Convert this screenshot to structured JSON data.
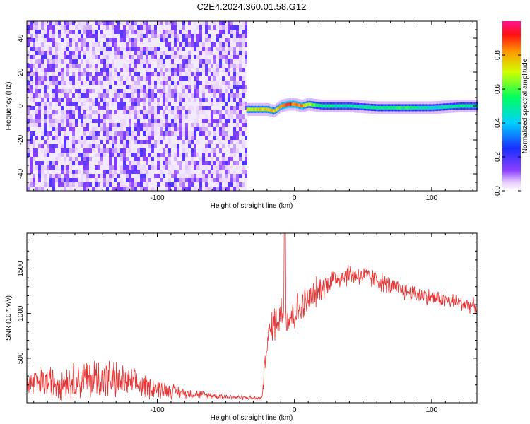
{
  "title": "C2E4.2024.360.01.58.G12",
  "chart_data": [
    {
      "type": "heatmap",
      "xlabel": "Height of straight line (km)",
      "ylabel": "Frequency (Hz)",
      "xlim": [
        -195,
        133
      ],
      "ylim": [
        -50,
        50
      ],
      "xticks": [
        -100,
        0,
        100
      ],
      "xtick_labels": [
        "-100",
        "0",
        "100"
      ],
      "yticks": [
        -40,
        -20,
        0,
        20,
        40
      ],
      "ytick_labels": [
        "-40",
        "-20",
        "0",
        "20",
        "40"
      ],
      "colorbar": {
        "label": "Normalized spectral amplitude",
        "range": [
          0.0,
          1.0
        ],
        "ticks": [
          0.0,
          0.2,
          0.4,
          0.6,
          0.8
        ],
        "tick_labels": [
          "0.0",
          "0.2",
          "0.4",
          "0.6",
          "0.8"
        ]
      },
      "noise_region_x": [
        -195,
        -35
      ],
      "signal_band": {
        "x": [
          -35,
          -30,
          -20,
          -15,
          -10,
          -5,
          0,
          5,
          10,
          20,
          40,
          60,
          80,
          100,
          120,
          133
        ],
        "frequency_hz": [
          -2,
          -2,
          -2,
          -3,
          0,
          1,
          1,
          0,
          1,
          0,
          0,
          -1,
          -1,
          -1,
          0,
          0
        ],
        "amplitude": [
          0.8,
          0.75,
          0.85,
          0.8,
          0.9,
          0.95,
          0.9,
          0.9,
          0.7,
          0.55,
          0.5,
          0.55,
          0.6,
          0.5,
          0.55,
          0.5
        ]
      }
    },
    {
      "type": "line",
      "xlabel": "Height of straight line (km)",
      "ylabel": "SNR (10 * v/v)",
      "xlim": [
        -195,
        133
      ],
      "ylim": [
        0,
        1900
      ],
      "xticks": [
        -100,
        0,
        100
      ],
      "xtick_labels": [
        "-100",
        "0",
        "100"
      ],
      "yticks": [
        500,
        1000,
        1500
      ],
      "ytick_labels": [
        "500",
        "1000",
        "1500"
      ],
      "series": [
        {
          "color": "#e83232",
          "x": [
            -195,
            -180,
            -160,
            -140,
            -120,
            -100,
            -80,
            -60,
            -40,
            -24,
            -22,
            -20,
            -15,
            -10,
            -8,
            -5,
            0,
            10,
            20,
            30,
            40,
            50,
            60,
            70,
            80,
            90,
            100,
            110,
            120,
            133
          ],
          "y": [
            210,
            230,
            250,
            280,
            220,
            160,
            110,
            80,
            60,
            50,
            300,
            700,
            900,
            1000,
            1050,
            950,
            1000,
            1150,
            1300,
            1400,
            1440,
            1420,
            1380,
            1300,
            1250,
            1220,
            1180,
            1150,
            1120,
            1080
          ],
          "noise_amplitude": [
            200,
            220,
            250,
            300,
            200,
            140,
            70,
            45,
            30,
            25,
            150,
            180,
            250,
            300,
            320,
            280,
            250,
            220,
            180,
            160,
            150,
            140,
            130,
            130,
            120,
            120,
            110,
            110,
            110,
            100
          ]
        }
      ],
      "peak": {
        "x": -7,
        "y": 1900
      }
    }
  ]
}
